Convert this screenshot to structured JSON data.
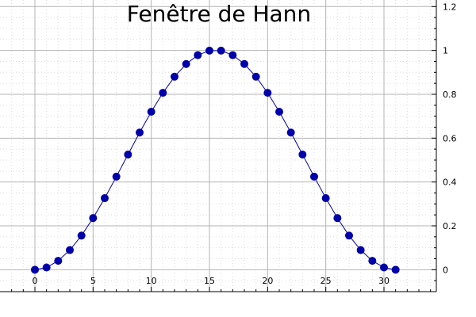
{
  "chart_data": {
    "type": "line",
    "title": "Fenêtre de Hann",
    "xlabel": "",
    "ylabel": "",
    "x": [
      0,
      1,
      2,
      3,
      4,
      5,
      6,
      7,
      8,
      9,
      10,
      11,
      12,
      13,
      14,
      15,
      16,
      17,
      18,
      19,
      20,
      21,
      22,
      23,
      24,
      25,
      26,
      27,
      28,
      29,
      30,
      31
    ],
    "series": [
      {
        "values": [
          0,
          0.0102,
          0.0405,
          0.0896,
          0.1555,
          0.2355,
          0.3263,
          0.4243,
          0.5253,
          0.6255,
          0.7205,
          0.8066,
          0.8802,
          0.9382,
          0.9785,
          0.9992,
          0.9992,
          0.9785,
          0.9382,
          0.8802,
          0.8066,
          0.7205,
          0.6255,
          0.5253,
          0.4243,
          0.3263,
          0.2355,
          0.1555,
          0.0896,
          0.0405,
          0.0102,
          0
        ],
        "color": "#0000aa"
      }
    ],
    "xlim": [
      -3,
      34.5
    ],
    "ylim": [
      -0.1,
      1.23
    ],
    "x_ticks": [
      0,
      5,
      10,
      15,
      20,
      25,
      30
    ],
    "y_ticks": [
      0,
      0.2,
      0.4,
      0.6,
      0.8,
      1,
      1.2
    ],
    "x_tick_labels": [
      "0",
      "5",
      "10",
      "15",
      "20",
      "25",
      "30"
    ],
    "y_tick_labels": [
      "0",
      "0.2",
      "0.4",
      "0.6",
      "0.8",
      "1",
      "1.2"
    ],
    "y_axis_position": "right",
    "grid": true,
    "legend": "none"
  }
}
